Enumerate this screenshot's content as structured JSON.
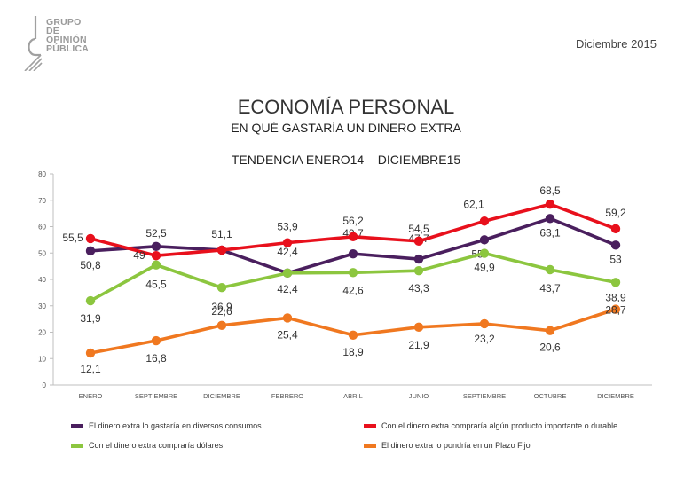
{
  "logo": {
    "lines": [
      "GRUPO",
      "DE",
      "OPINIÓN",
      "PÚBLICA"
    ]
  },
  "date": "Diciembre 2015",
  "title": "ECONOMÍA PERSONAL",
  "subtitle": "EN QUÉ GASTARÍA UN DINERO EXTRA",
  "trend_label": "TENDENCIA ENERO14 – DICIEMBRE15",
  "chart_data": {
    "type": "line",
    "categories": [
      "ENERO",
      "SEPTIEMBRE",
      "DICIEMBRE",
      "FEBRERO",
      "ABRIL",
      "JUNIO",
      "SEPTIEMBRE",
      "OCTUBRE",
      "DICIEMBRE"
    ],
    "ylim": [
      0,
      80
    ],
    "yticks": [
      0,
      10,
      20,
      30,
      40,
      50,
      60,
      70,
      80
    ],
    "series": [
      {
        "name": "El dinero extra lo gastaría en diversos consumos",
        "color": "#4a1f5e",
        "values": [
          50.8,
          52.5,
          51.1,
          42.4,
          49.7,
          47.7,
          55,
          63.1,
          53
        ],
        "labels": [
          "50,8",
          "52,5",
          "51,1",
          "42,4",
          "49,7",
          "47,7",
          "55",
          "63,1",
          "53"
        ]
      },
      {
        "name": "Con el dinero extra compraría algún producto importante o durable",
        "color": "#e8101c",
        "values": [
          55.5,
          49,
          51.1,
          53.9,
          56.2,
          54.5,
          62.1,
          68.5,
          59.2
        ],
        "labels": [
          "55,5",
          "49",
          "",
          "53,9",
          "56,2",
          "54,5",
          "62,1",
          "68,5",
          "59,2"
        ]
      },
      {
        "name": "Con el dinero extra compraría dólares",
        "color": "#8cc63f",
        "values": [
          31.9,
          45.5,
          36.9,
          42.4,
          42.6,
          43.3,
          49.9,
          43.7,
          38.9
        ],
        "labels": [
          "31,9",
          "45,5",
          "36,9",
          "42,4",
          "42,6",
          "43,3",
          "49,9",
          "43,7",
          "38,9"
        ]
      },
      {
        "name": "El dinero extra lo pondría en un Plazo Fijo",
        "color": "#f07820",
        "values": [
          12.1,
          16.8,
          22.6,
          25.4,
          18.9,
          21.9,
          23.2,
          20.6,
          28.7
        ],
        "labels": [
          "12,1",
          "16,8",
          "22,6",
          "25,4",
          "18,9",
          "21,9",
          "23,2",
          "20,6",
          "28,7"
        ]
      }
    ],
    "legend": [
      {
        "label": "El dinero extra lo gastaría en diversos consumos",
        "color": "#4a1f5e"
      },
      {
        "label": "Con el dinero extra compraría algún producto importante o durable",
        "color": "#e8101c"
      },
      {
        "label": "Con el dinero extra compraría dólares",
        "color": "#8cc63f"
      },
      {
        "label": "El dinero extra lo pondría en un Plazo Fijo",
        "color": "#f07820"
      }
    ]
  }
}
